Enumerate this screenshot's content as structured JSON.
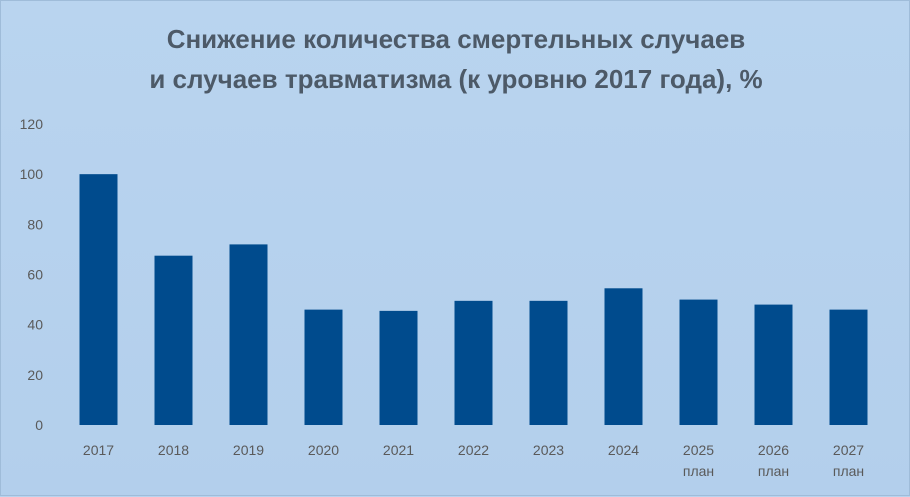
{
  "chart_data": {
    "type": "bar",
    "title_lines": [
      "Снижение количества смертельных случаев",
      "и случаев травматизма (к уровню 2017 года), %"
    ],
    "categories": [
      [
        "2017"
      ],
      [
        "2018"
      ],
      [
        "2019"
      ],
      [
        "2020"
      ],
      [
        "2021"
      ],
      [
        "2022"
      ],
      [
        "2023"
      ],
      [
        "2024"
      ],
      [
        "2025",
        "план"
      ],
      [
        "2026",
        "план"
      ],
      [
        "2027",
        "план"
      ]
    ],
    "values": [
      100,
      67.5,
      72,
      46,
      45.5,
      49.5,
      49.5,
      54.5,
      50,
      48,
      46
    ],
    "ylim": [
      0,
      120
    ],
    "yticks": [
      0,
      20,
      40,
      60,
      80,
      100,
      120
    ],
    "grid": false,
    "bar_color": "#004b8d"
  }
}
